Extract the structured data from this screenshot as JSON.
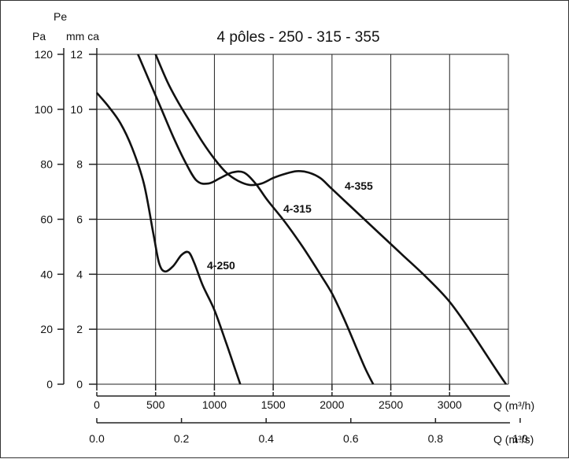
{
  "chart_data": {
    "type": "line",
    "title": "4 pôles - 250 - 315 - 355",
    "y_unit_left": "Pa",
    "y_unit_right_line1": "Pe",
    "y_unit_right_line2": "mm ca",
    "x_unit_top": "Q (m³/h)",
    "x_unit_bottom": "Q (m³/s)",
    "xlim": [
      0,
      3500
    ],
    "ylim": [
      0,
      120
    ],
    "x_ticks_m3h": [
      "0",
      "500",
      "1000",
      "1500",
      "2000",
      "2500",
      "3000"
    ],
    "x_ticks_m3s": [
      "0.0",
      "0.2",
      "0.4",
      "0.6",
      "0.8",
      "1.0"
    ],
    "y_ticks_pa": [
      "0",
      "20",
      "40",
      "60",
      "80",
      "100",
      "120"
    ],
    "y_ticks_mmca": [
      "0",
      "2",
      "4",
      "6",
      "8",
      "10",
      "12"
    ],
    "grid": true,
    "series": [
      {
        "name": "4-250",
        "x": [
          0,
          100,
          200,
          300,
          400,
          480,
          530,
          580,
          650,
          720,
          780,
          830,
          900,
          1000,
          1100,
          1180,
          1220
        ],
        "y": [
          106,
          101,
          95,
          86,
          73,
          55,
          44,
          41,
          43,
          47,
          48,
          44,
          36,
          27,
          15,
          5,
          0
        ]
      },
      {
        "name": "4-315",
        "x": [
          350,
          450,
          550,
          650,
          750,
          850,
          950,
          1050,
          1150,
          1250,
          1350,
          1450,
          1600,
          1750,
          1900,
          2000,
          2100,
          2200,
          2280,
          2350
        ],
        "y": [
          120,
          110,
          100,
          90,
          81,
          74,
          73,
          75,
          77,
          77,
          73,
          67,
          59,
          50,
          40,
          33,
          24,
          14,
          6,
          0
        ]
      },
      {
        "name": "4-355",
        "x": [
          500,
          600,
          700,
          800,
          900,
          1000,
          1100,
          1200,
          1300,
          1400,
          1500,
          1600,
          1700,
          1800,
          1900,
          2000,
          2200,
          2400,
          2600,
          2800,
          3000,
          3200,
          3400,
          3480
        ],
        "y": [
          120,
          110,
          102,
          95,
          88,
          82,
          77,
          74,
          72.5,
          73,
          75,
          76.5,
          77.5,
          77,
          75,
          71,
          63,
          55,
          47,
          39,
          30,
          18,
          5,
          0
        ]
      }
    ]
  }
}
